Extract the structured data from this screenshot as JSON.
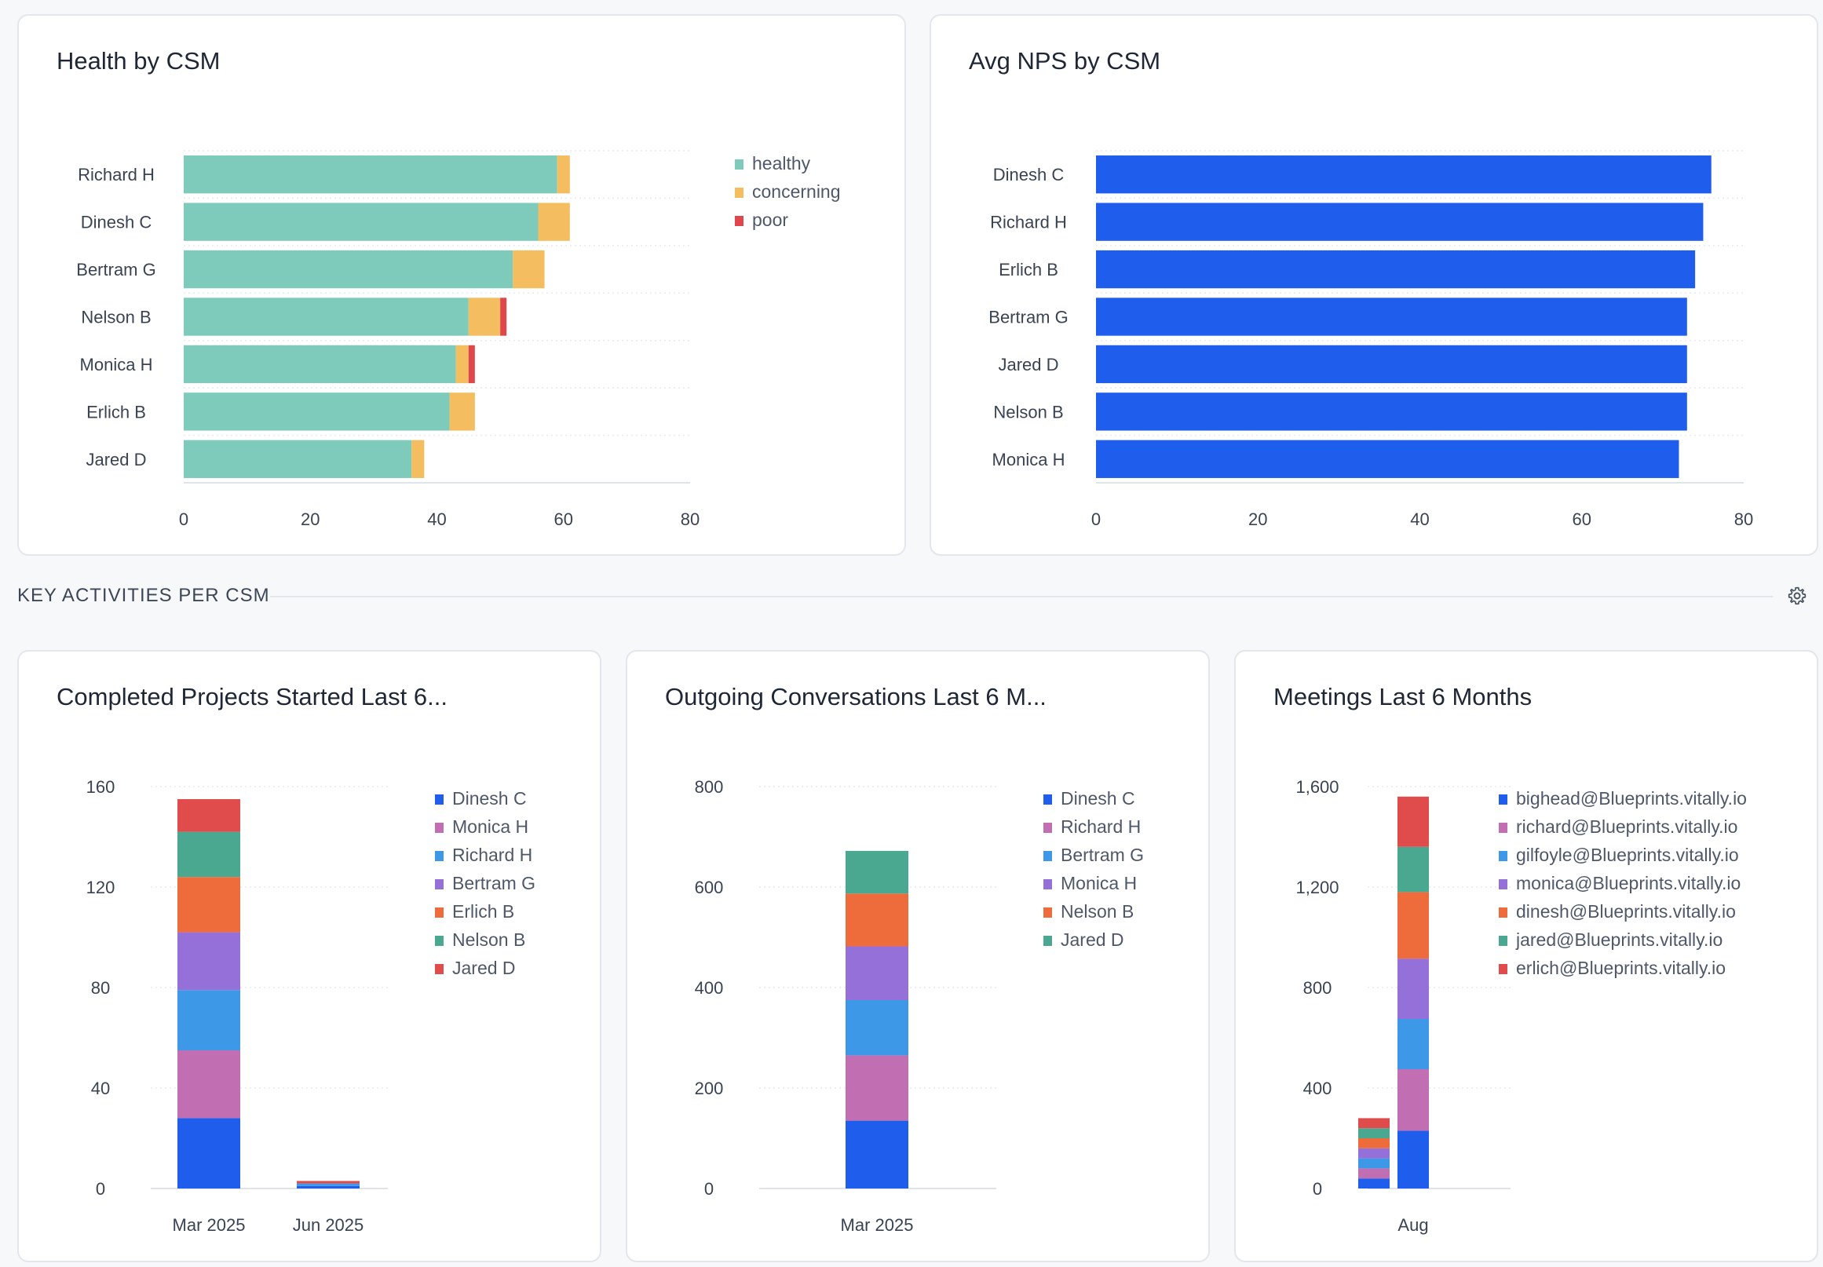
{
  "section": {
    "title": "KEY ACTIVITIES PER CSM",
    "settings_icon": "gear-icon"
  },
  "colors": {
    "healthy": "#7ecabb",
    "concerning": "#f4bd5f",
    "poor": "#e0474c",
    "nps_bar": "#1f5ded",
    "series": [
      "#1f5ded",
      "#c26eb3",
      "#3d98e8",
      "#9470d8",
      "#ee6b3b",
      "#4aa891",
      "#e04c4c"
    ]
  },
  "chart_data": [
    {
      "id": "health",
      "type": "bar",
      "orientation": "horizontal",
      "stacked": true,
      "title": "Health by CSM",
      "categories": [
        "Richard H",
        "Dinesh C",
        "Bertram G",
        "Nelson B",
        "Monica H",
        "Erlich B",
        "Jared D"
      ],
      "series": [
        {
          "name": "healthy",
          "values": [
            59,
            56,
            52,
            45,
            43,
            42,
            36
          ]
        },
        {
          "name": "concerning",
          "values": [
            2,
            5,
            5,
            5,
            2,
            4,
            2
          ]
        },
        {
          "name": "poor",
          "values": [
            0,
            0,
            0,
            1,
            1,
            0,
            0
          ]
        }
      ],
      "xlim": [
        0,
        80
      ],
      "xticks": [
        "0",
        "20",
        "40",
        "60",
        "80"
      ],
      "legend": "right",
      "grid": true
    },
    {
      "id": "nps",
      "type": "bar",
      "orientation": "horizontal",
      "title": "Avg NPS by CSM",
      "categories": [
        "Dinesh C",
        "Richard H",
        "Erlich B",
        "Bertram G",
        "Jared D",
        "Nelson B",
        "Monica H"
      ],
      "values": [
        76,
        75,
        74,
        73,
        73,
        73,
        72
      ],
      "xlim": [
        0,
        80
      ],
      "xticks": [
        "0",
        "20",
        "40",
        "60",
        "80"
      ],
      "legend": "none",
      "grid": true
    },
    {
      "id": "projects",
      "type": "bar",
      "stacked": true,
      "title": "Completed Projects Started Last 6...",
      "categories": [
        "Mar 2025",
        "Jun 2025"
      ],
      "series": [
        {
          "name": "Dinesh C",
          "values": [
            28,
            1
          ]
        },
        {
          "name": "Monica H",
          "values": [
            27,
            0
          ]
        },
        {
          "name": "Richard H",
          "values": [
            24,
            1
          ]
        },
        {
          "name": "Bertram G",
          "values": [
            23,
            0
          ]
        },
        {
          "name": "Erlich B",
          "values": [
            22,
            0
          ]
        },
        {
          "name": "Nelson B",
          "values": [
            18,
            0
          ]
        },
        {
          "name": "Jared D",
          "values": [
            13,
            1
          ]
        }
      ],
      "ylim": [
        0,
        160
      ],
      "yticks": [
        "0",
        "40",
        "80",
        "120",
        "160"
      ],
      "legend": "right",
      "grid": true
    },
    {
      "id": "conversations",
      "type": "bar",
      "stacked": true,
      "title": "Outgoing Conversations Last 6 M...",
      "categories": [
        "Mar 2025"
      ],
      "series": [
        {
          "name": "Dinesh C",
          "values": [
            135
          ]
        },
        {
          "name": "Richard H",
          "values": [
            130
          ]
        },
        {
          "name": "Bertram G",
          "values": [
            110
          ]
        },
        {
          "name": "Monica H",
          "values": [
            107
          ]
        },
        {
          "name": "Nelson B",
          "values": [
            105
          ]
        },
        {
          "name": "Jared D",
          "values": [
            85
          ]
        }
      ],
      "ylim": [
        0,
        800
      ],
      "yticks": [
        "0",
        "200",
        "400",
        "600",
        "800"
      ],
      "legend": "right",
      "grid": true
    },
    {
      "id": "meetings",
      "type": "bar",
      "stacked": true,
      "title": "Meetings Last 6 Months",
      "categories": [
        "",
        "Aug"
      ],
      "series": [
        {
          "name": "bighead@Blueprints.vitally.io",
          "values": [
            40,
            230
          ]
        },
        {
          "name": "richard@Blueprints.vitally.io",
          "values": [
            40,
            245
          ]
        },
        {
          "name": "gilfoyle@Blueprints.vitally.io",
          "values": [
            40,
            200
          ]
        },
        {
          "name": "monica@Blueprints.vitally.io",
          "values": [
            40,
            240
          ]
        },
        {
          "name": "dinesh@Blueprints.vitally.io",
          "values": [
            40,
            265
          ]
        },
        {
          "name": "jared@Blueprints.vitally.io",
          "values": [
            40,
            180
          ]
        },
        {
          "name": "erlich@Blueprints.vitally.io",
          "values": [
            40,
            200
          ]
        }
      ],
      "ylim": [
        0,
        1600
      ],
      "yticks": [
        "0",
        "400",
        "800",
        "1,200",
        "1,600"
      ],
      "legend": "right",
      "grid": true
    }
  ]
}
